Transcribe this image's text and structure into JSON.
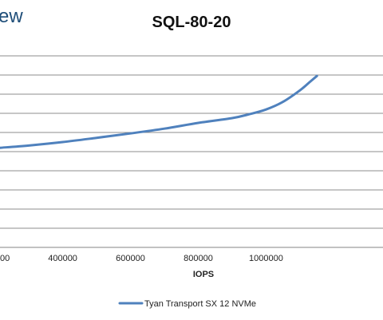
{
  "watermark": "ew",
  "chart_data": {
    "type": "line",
    "title": "SQL-80-20",
    "xlabel": "IOPS",
    "ylabel": "",
    "x_ticks": [
      400000,
      600000,
      800000,
      1000000
    ],
    "x_tick_labels": [
      "400000",
      "600000",
      "800000",
      "1000000"
    ],
    "x_partial_tick_label": "00",
    "xlim": [
      215000,
      1345000
    ],
    "ylim": [
      0,
      11
    ],
    "y_gridlines": [
      0,
      1,
      2,
      3,
      4,
      5,
      6,
      7,
      8,
      9,
      10
    ],
    "grid": true,
    "legend_position": "bottom",
    "series": [
      {
        "name": "Tyan Transport SX 12 NVMe",
        "color": "#4f81bd",
        "x": [
          215000,
          300000,
          400000,
          500000,
          600000,
          700000,
          800000,
          900000,
          950000,
          1000000,
          1050000,
          1100000,
          1130000,
          1150000
        ],
        "y": [
          5.2,
          5.32,
          5.5,
          5.72,
          5.95,
          6.2,
          6.5,
          6.75,
          6.95,
          7.2,
          7.6,
          8.2,
          8.65,
          8.95
        ]
      }
    ]
  }
}
